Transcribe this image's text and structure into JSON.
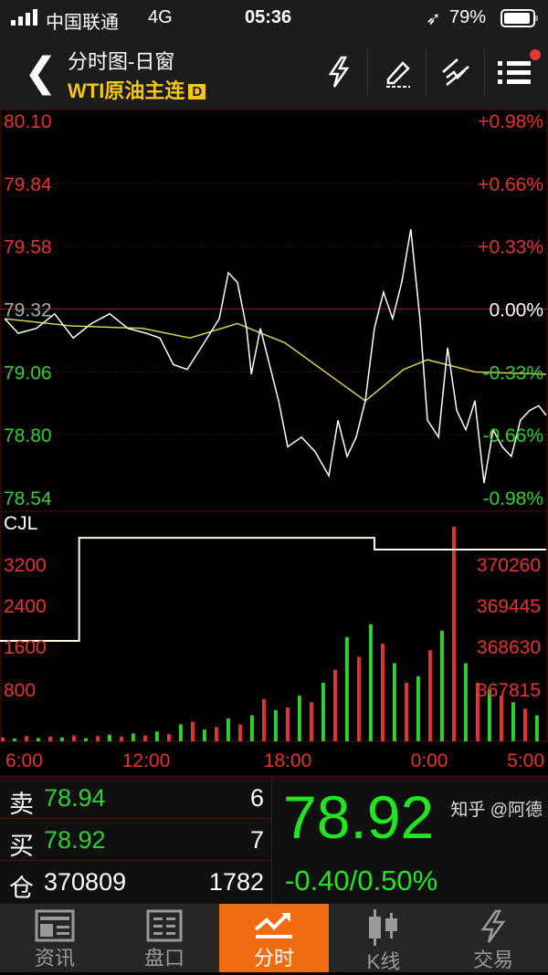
{
  "status": {
    "carrier": "中国联通",
    "network": "4G",
    "time": "05:36",
    "battery": "79%"
  },
  "header": {
    "title": "分时图-日窗",
    "instrument": "WTI原油主连",
    "badge": "D",
    "tools": [
      "lightning-icon",
      "pencil-icon",
      "trend-lines-icon",
      "menu-list-icon"
    ],
    "notification_dot_color": "#e53935"
  },
  "chart_data": {
    "type": "line",
    "price_axis": {
      "left_labels": [
        "80.10",
        "79.84",
        "79.58",
        "79.32",
        "79.06",
        "78.80",
        "78.54"
      ],
      "right_labels": [
        "+0.98%",
        "+0.66%",
        "+0.33%",
        "0.00%",
        "-0.33%",
        "-0.66%",
        "-0.98%"
      ],
      "range": [
        78.54,
        80.1
      ],
      "prev_close": 79.32
    },
    "time_labels": [
      "6:00",
      "12:00",
      "18:00",
      "0:00",
      "5:00"
    ],
    "session": [
      "6:00",
      "5:00"
    ],
    "price_series": {
      "color": "#ffffff",
      "points": [
        [
          "6:12",
          79.28
        ],
        [
          "6:46",
          79.22
        ],
        [
          "7:32",
          79.24
        ],
        [
          "8:18",
          79.3
        ],
        [
          "9:05",
          79.2
        ],
        [
          "9:51",
          79.26
        ],
        [
          "10:37",
          79.3
        ],
        [
          "11:23",
          79.24
        ],
        [
          "12:09",
          79.22
        ],
        [
          "12:44",
          79.2
        ],
        [
          "13:18",
          79.09
        ],
        [
          "13:53",
          79.07
        ],
        [
          "14:28",
          79.16
        ],
        [
          "15:14",
          79.28
        ],
        [
          "15:37",
          79.47
        ],
        [
          "16:00",
          79.43
        ],
        [
          "16:23",
          79.24
        ],
        [
          "16:35",
          79.05
        ],
        [
          "16:58",
          79.24
        ],
        [
          "17:21",
          79.09
        ],
        [
          "17:44",
          78.94
        ],
        [
          "18:07",
          78.75
        ],
        [
          "18:42",
          78.79
        ],
        [
          "19:16",
          78.73
        ],
        [
          "19:51",
          78.63
        ],
        [
          "20:14",
          78.86
        ],
        [
          "20:37",
          78.71
        ],
        [
          "21:00",
          78.79
        ],
        [
          "21:23",
          78.94
        ],
        [
          "21:46",
          79.24
        ],
        [
          "22:09",
          79.39
        ],
        [
          "22:32",
          79.28
        ],
        [
          "22:55",
          79.43
        ],
        [
          "23:18",
          79.65
        ],
        [
          "23:41",
          79.28
        ],
        [
          "0:00",
          78.86
        ],
        [
          "0:28",
          78.79
        ],
        [
          "0:51",
          79.16
        ],
        [
          "1:14",
          78.9
        ],
        [
          "1:37",
          78.82
        ],
        [
          "2:00",
          78.94
        ],
        [
          "2:23",
          78.6
        ],
        [
          "2:46",
          78.82
        ],
        [
          "3:09",
          78.75
        ],
        [
          "3:32",
          78.71
        ],
        [
          "3:55",
          78.86
        ],
        [
          "4:18",
          78.9
        ],
        [
          "4:41",
          78.92
        ],
        [
          "5:00",
          78.88
        ]
      ]
    },
    "average_series": {
      "color": "#d8d05a",
      "points": [
        [
          "6:12",
          79.28
        ],
        [
          "9:00",
          79.25
        ],
        [
          "12:00",
          79.24
        ],
        [
          "14:00",
          79.2
        ],
        [
          "16:00",
          79.26
        ],
        [
          "18:00",
          79.18
        ],
        [
          "21:23",
          78.94
        ],
        [
          "23:00",
          79.07
        ],
        [
          "0:00",
          79.11
        ],
        [
          "2:00",
          79.06
        ],
        [
          "5:00",
          79.05
        ]
      ]
    },
    "volume_panel": {
      "label": "CJL",
      "left_labels": [
        "3200",
        "2400",
        "1600",
        "800"
      ],
      "left_range": [
        0,
        4000
      ],
      "right_labels": [
        "370260",
        "369445",
        "368630",
        "367815"
      ],
      "volume": [
        60,
        40,
        80,
        50,
        70,
        60,
        90,
        50,
        80,
        100,
        70,
        120,
        90,
        150,
        110,
        260,
        300,
        180,
        220,
        350,
        260,
        400,
        650,
        480,
        520,
        700,
        600,
        900,
        1100,
        1600,
        1300,
        1800,
        1500,
        1200,
        900,
        1000,
        1400,
        1700,
        3300,
        1200,
        900,
        800,
        700,
        600,
        500,
        400
      ],
      "open_interest": {
        "color": "#ffffe0",
        "points": [
          [
            "6:00",
            368775
          ],
          [
            "9:20",
            368775
          ],
          [
            "9:20",
            370820
          ],
          [
            "21:46",
            370820
          ],
          [
            "21:46",
            370585
          ],
          [
            "5:00",
            370585
          ]
        ]
      },
      "up_color": "#e8322d",
      "down_color": "#2fd02f"
    }
  },
  "quote": {
    "sell_label": "卖",
    "sell_price": "78.94",
    "sell_qty": "6",
    "buy_label": "买",
    "buy_price": "78.92",
    "buy_qty": "7",
    "oi_label": "仓",
    "oi_value": "370809",
    "oi_change": "1782",
    "last": "78.92",
    "change": "-0.40/0.50%"
  },
  "tabs": [
    {
      "label": "资讯",
      "icon": "news-icon"
    },
    {
      "label": "盘口",
      "icon": "order-book-icon"
    },
    {
      "label": "分时",
      "icon": "trend-up-icon",
      "active": true
    },
    {
      "label": "K线",
      "icon": "candlestick-icon"
    },
    {
      "label": "交易",
      "icon": "lightning-icon"
    }
  ],
  "watermark": "知乎 @阿德"
}
